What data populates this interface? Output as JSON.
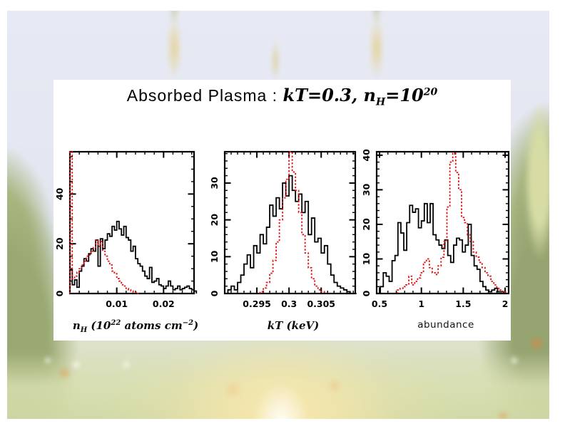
{
  "figure": {
    "title": {
      "prefix": "Absorbed Plasma : ",
      "kT": "kT",
      "eq1": "=0.3, ",
      "n": "n",
      "nsub": "H",
      "eq2": "=10",
      "sup": "20"
    },
    "xlabels": {
      "nh": {
        "n": "n",
        "sub": "H",
        "open": " (10",
        "sup1": "22",
        "mid": " atoms cm",
        "sup2": "−2",
        "close": ")"
      },
      "kt": {
        "main": "kT",
        "unit": " (keV)"
      },
      "abundance": "abundance"
    },
    "colors": {
      "solid_series": "#000000",
      "dashed_series": "#e01010",
      "panel_bg": "#ffffff"
    }
  },
  "chart_data": [
    {
      "type": "histogram",
      "xlabel": "n_H (10^22 atoms cm^-2)",
      "ylabel": "",
      "xlim": [
        0,
        0.0265
      ],
      "ylim": [
        0,
        57
      ],
      "xticks": {
        "major": [
          0.01,
          0.02
        ],
        "labels": [
          "0.01",
          "0.02"
        ],
        "minor_step": 0.002
      },
      "yticks": {
        "major": [
          0,
          20,
          40
        ],
        "labels": [
          "0",
          "20",
          "40"
        ],
        "minor_step": 5
      },
      "series": [
        {
          "name": "posterior-solid-black",
          "color": "#000000",
          "dash": "",
          "bin_start": 0.0,
          "bin_width": 0.0005,
          "values": [
            9.5,
            3.5,
            5.5,
            2.5,
            9,
            11,
            14,
            13,
            16,
            18,
            17,
            21.5,
            11,
            22,
            18,
            21.5,
            24,
            23,
            27,
            25.5,
            29,
            26,
            23.5,
            27,
            22.5,
            21.5,
            17,
            19,
            14,
            12,
            11,
            9,
            7,
            6,
            10.5,
            4.5,
            5,
            6,
            3.5,
            3,
            2,
            3,
            5,
            3,
            1.5,
            2,
            3,
            1.5,
            2,
            2.5,
            3,
            2,
            1.5,
            1
          ]
        },
        {
          "name": "reference-dashed-red",
          "color": "#e01010",
          "dash": "2.4 2.4",
          "bin_start": 0.0,
          "bin_width": 0.0005,
          "values": [
            57,
            6,
            7,
            8.5,
            10,
            11.5,
            13,
            15,
            15.5,
            17,
            18.5,
            21.5,
            19,
            21,
            17,
            15,
            13,
            11.5,
            9,
            8,
            6,
            5,
            3.5,
            3,
            2,
            1.5,
            1,
            0.5,
            0.5,
            0
          ]
        }
      ]
    },
    {
      "type": "histogram",
      "xlabel": "kT (keV)",
      "ylabel": "",
      "xlim": [
        0.29,
        0.3103
      ],
      "ylim": [
        0,
        38.5
      ],
      "xticks": {
        "major": [
          0.295,
          0.3,
          0.305
        ],
        "labels": [
          "0.295",
          "0.3",
          "0.305"
        ],
        "minor_step": 0.001
      },
      "yticks": {
        "major": [
          0,
          10,
          20,
          30
        ],
        "labels": [
          "0",
          "10",
          "20",
          "30"
        ],
        "minor_step": 2
      },
      "series": [
        {
          "name": "posterior-solid-black",
          "color": "#000000",
          "dash": "",
          "bin_start": 0.2905,
          "bin_width": 0.0005,
          "values": [
            1,
            2,
            1,
            3,
            5,
            8,
            10.5,
            7,
            13,
            11,
            16,
            13.5,
            18,
            24,
            21,
            26,
            23,
            30,
            26.5,
            32,
            28,
            25,
            27,
            22,
            25,
            16,
            20.5,
            14,
            15,
            11,
            13,
            8,
            5,
            3,
            2,
            1.5,
            1,
            0.5,
            0,
            0
          ]
        },
        {
          "name": "reference-dashed-red",
          "color": "#e01010",
          "dash": "2.4 2.4",
          "bin_start": 0.2955,
          "bin_width": 0.0005,
          "values": [
            0.5,
            1.5,
            3,
            5.5,
            9,
            14,
            20,
            26,
            31,
            38.5,
            33,
            28,
            22,
            16,
            11,
            7,
            4,
            2,
            1,
            0.5
          ]
        }
      ]
    },
    {
      "type": "histogram",
      "xlabel": "abundance",
      "ylabel": "",
      "xlim": [
        0.466,
        2.042
      ],
      "ylim": [
        0,
        41
      ],
      "xticks": {
        "major": [
          0.5,
          1,
          1.5,
          2
        ],
        "labels": [
          "0.5",
          "1",
          "1.5",
          "2"
        ],
        "minor_step": 0.1
      },
      "yticks": {
        "major": [
          0,
          10,
          20,
          30,
          40
        ],
        "labels": [
          "0",
          "10",
          "20",
          "30",
          "40"
        ],
        "minor_step": 2
      },
      "series": [
        {
          "name": "posterior-solid-black",
          "color": "#000000",
          "dash": "",
          "bin_start": 0.51,
          "bin_width": 0.035,
          "values": [
            2,
            6,
            5,
            3.5,
            9.5,
            11,
            20.5,
            17.5,
            12.5,
            20.5,
            25.5,
            23.5,
            24.5,
            19,
            21,
            26,
            20.5,
            26,
            17,
            15.5,
            14,
            13,
            15.5,
            11,
            9,
            14,
            16,
            15.5,
            12,
            14,
            20,
            11,
            8,
            7,
            3.5,
            2,
            1,
            0.5,
            1,
            1.5,
            0.5,
            0.5
          ]
        },
        {
          "name": "reference-dashed-red",
          "color": "#e01010",
          "dash": "2.4 2.4",
          "bin_start": 0.71,
          "bin_width": 0.035,
          "values": [
            1,
            1.5,
            2,
            2.5,
            5,
            2.5,
            3.5,
            4.5,
            6,
            9,
            10,
            7.5,
            6,
            5.5,
            8,
            10.5,
            15,
            25,
            38,
            40.5,
            35,
            30,
            22,
            20.5,
            17,
            15,
            12,
            10.5,
            9,
            7.5,
            6,
            5,
            3.5,
            2.5,
            1.5,
            1,
            0.5
          ]
        }
      ]
    }
  ]
}
